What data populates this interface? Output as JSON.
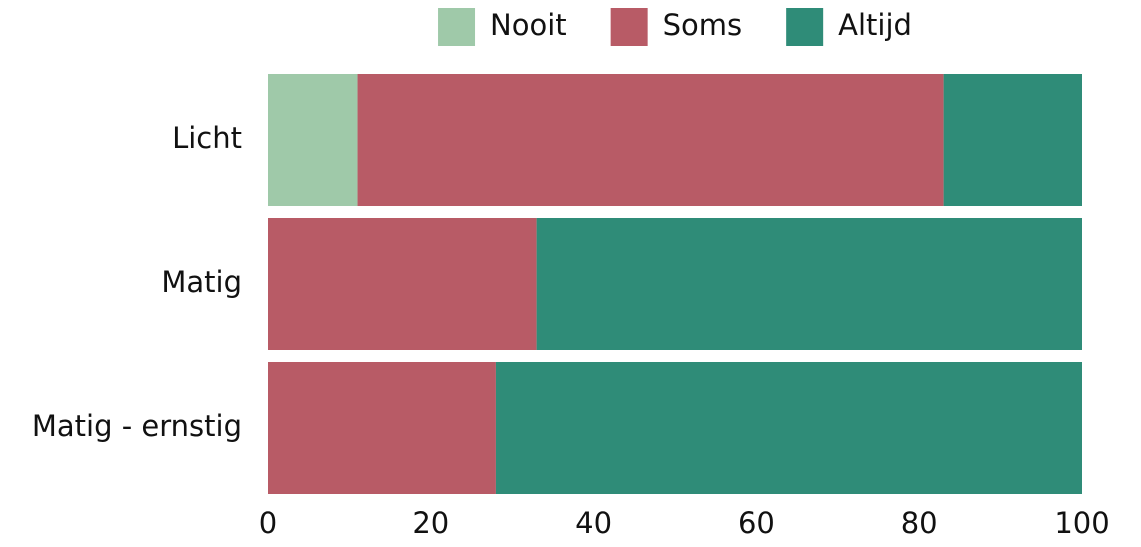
{
  "chart_data": {
    "type": "stacked_barh",
    "categories": [
      "Licht",
      "Matig",
      "Matig - ernstig"
    ],
    "series": [
      {
        "name": "Nooit",
        "color": "#9fc9a9",
        "values": [
          11,
          0,
          0
        ]
      },
      {
        "name": "Soms",
        "color": "#b85b66",
        "values": [
          72,
          33,
          28
        ]
      },
      {
        "name": "Altijd",
        "color": "#2f8c78",
        "values": [
          17,
          67,
          72
        ]
      }
    ],
    "xlim": [
      0,
      100
    ],
    "xticks": [
      0,
      20,
      40,
      60,
      80,
      100
    ],
    "grid": false,
    "legend": "top"
  }
}
